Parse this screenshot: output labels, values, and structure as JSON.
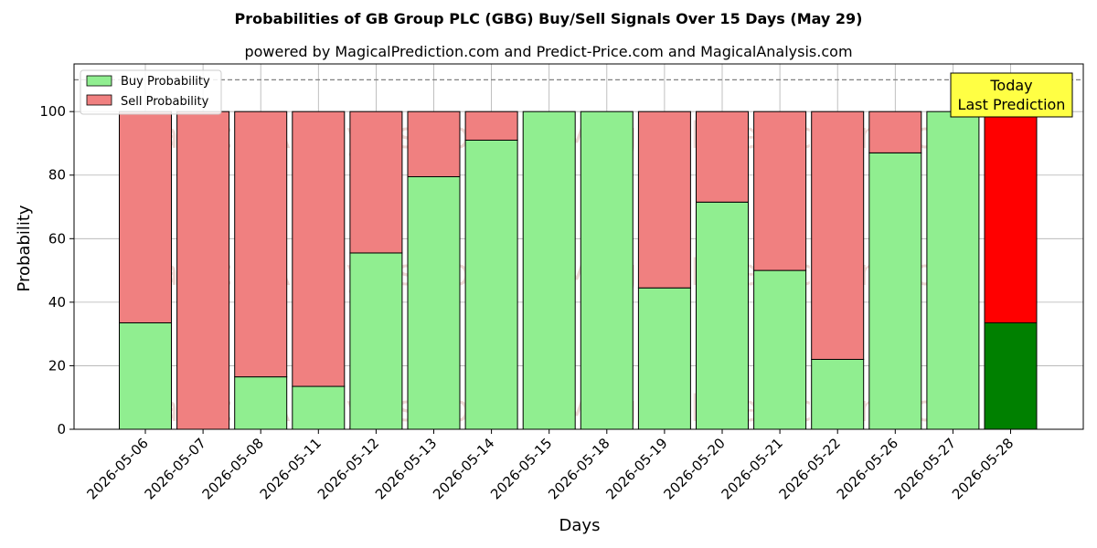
{
  "chart_data": {
    "type": "bar",
    "stacked": true,
    "title": "Probabilities of GB Group PLC (GBG) Buy/Sell Signals Over 15 Days (May 29)",
    "subtitle": "powered by MagicalPrediction.com and Predict-Price.com and MagicalAnalysis.com",
    "xlabel": "Days",
    "ylabel": "Probability",
    "ylim": [
      0,
      115
    ],
    "yticks": [
      0,
      20,
      40,
      60,
      80,
      100
    ],
    "grid": true,
    "legend_position": "top-left",
    "reference_line": 110,
    "categories": [
      "2026-05-06",
      "2026-05-07",
      "2026-05-08",
      "2026-05-11",
      "2026-05-12",
      "2026-05-13",
      "2026-05-14",
      "2026-05-15",
      "2026-05-18",
      "2026-05-19",
      "2026-05-20",
      "2026-05-21",
      "2026-05-22",
      "2026-05-26",
      "2026-05-27",
      "2026-05-28"
    ],
    "series": [
      {
        "name": "Buy Probability",
        "color": "#90ee90",
        "highlight_color": "#008000",
        "values": [
          33.5,
          0,
          16.5,
          13.5,
          55.5,
          79.5,
          91,
          100,
          100,
          44.5,
          71.5,
          50,
          22,
          87,
          100,
          33.5
        ]
      },
      {
        "name": "Sell Probability",
        "color": "#f08080",
        "highlight_color": "#ff0000",
        "values": [
          66.5,
          100,
          83.5,
          86.5,
          44.5,
          20.5,
          9,
          0,
          0,
          55.5,
          28.5,
          50,
          78,
          13,
          0,
          66.5
        ]
      }
    ],
    "highlight_index": 15,
    "annotation": {
      "line1": "Today",
      "line2": "Last Prediction",
      "color": "#ffff44"
    },
    "watermarks": [
      "MagicalAnalysis.com",
      "MagicalPrediction.com"
    ]
  }
}
